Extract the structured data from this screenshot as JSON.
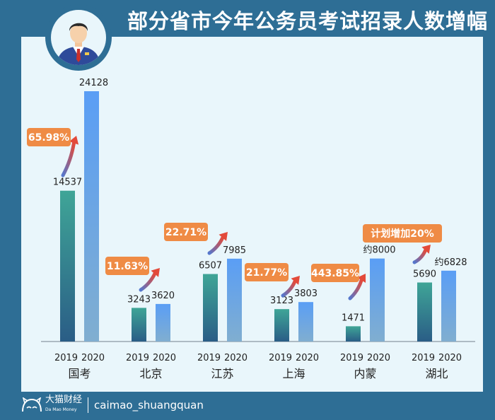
{
  "title": "部分省市今年公务员考试招录人数增幅",
  "footer": {
    "brand": "大猫财经",
    "brand_en": "Da Mao Money",
    "handle": "caimao_shuangquan"
  },
  "colors": {
    "frame": "#2e6e95",
    "panel": "#e9f6fb",
    "bar_2019_top": "#3fa597",
    "bar_2019_bottom": "#2a5d86",
    "bar_2020_top": "#5a9ef5",
    "bar_2020_bottom": "#80aed0",
    "tag": "#ef8b45",
    "arrow_start": "#5577cc",
    "arrow_end": "#e34a3a"
  },
  "chart_data": {
    "type": "bar",
    "title": "部分省市今年公务员考试招录人数增幅",
    "xlabel": "",
    "ylabel": "",
    "ylim": [
      0,
      24128
    ],
    "grid": false,
    "legend": "none",
    "categories": [
      "国考",
      "北京",
      "江苏",
      "上海",
      "内蒙",
      "湖北"
    ],
    "year_labels": [
      "2019",
      "2020"
    ],
    "series": [
      {
        "name": "2019",
        "values": [
          14537,
          3243,
          6507,
          3123,
          1471,
          5690
        ]
      },
      {
        "name": "2020",
        "values": [
          24128,
          3620,
          7985,
          3803,
          8000,
          6828
        ]
      }
    ],
    "value_labels_2019": [
      "14537",
      "3243",
      "6507",
      "3123",
      "1471",
      "5690"
    ],
    "value_labels_2020": [
      "24128",
      "3620",
      "7985",
      "3803",
      "约8000",
      "约6828"
    ],
    "growth_labels": [
      "65.98%",
      "11.63%",
      "22.71%",
      "21.77%",
      "443.85%",
      "计划增加20%"
    ]
  }
}
